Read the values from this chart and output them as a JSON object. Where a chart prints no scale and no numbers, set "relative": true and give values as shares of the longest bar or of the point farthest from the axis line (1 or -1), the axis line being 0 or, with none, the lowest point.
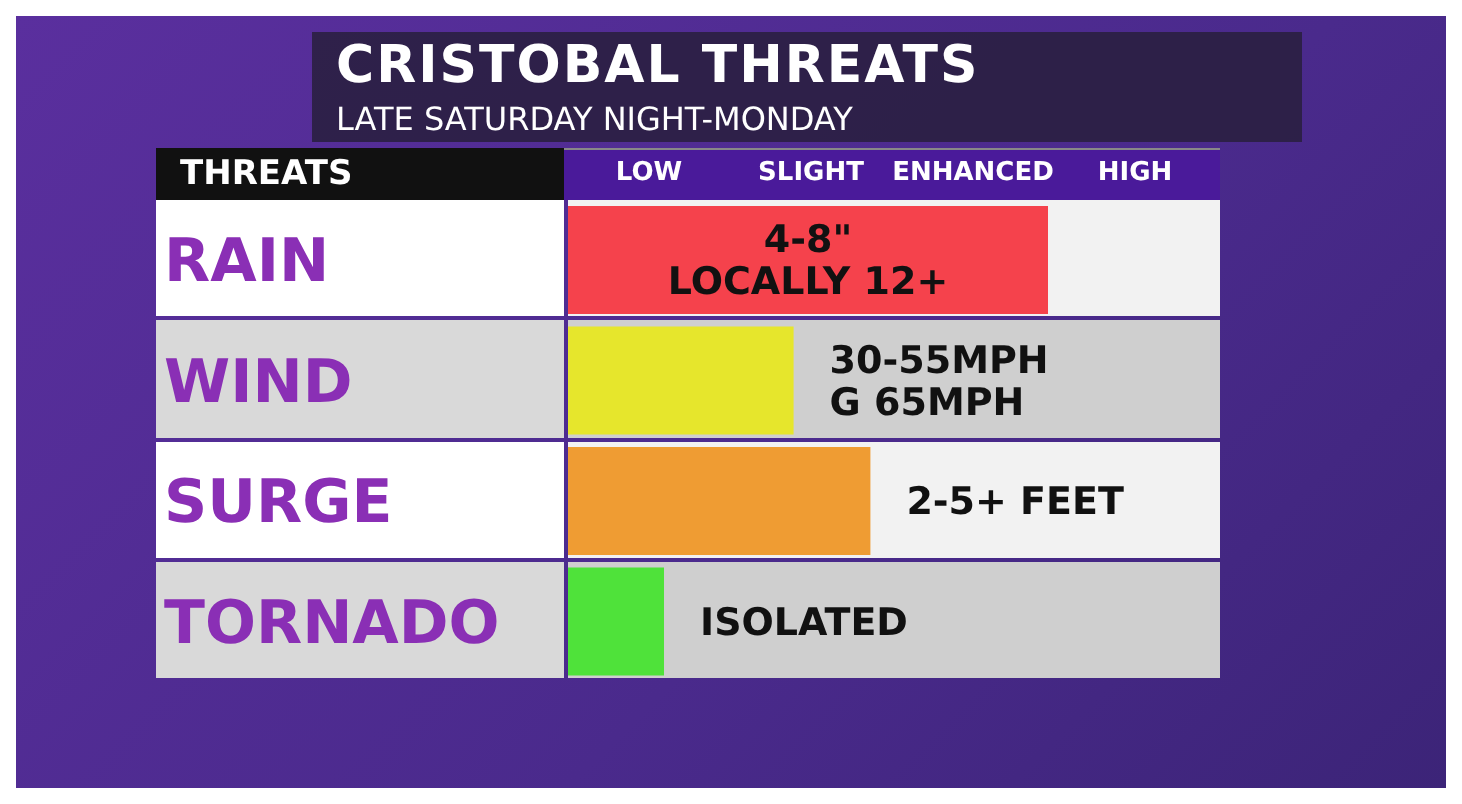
{
  "chart_data": {
    "type": "bar",
    "orientation": "horizontal",
    "relative": true,
    "title": "CRISTOBAL THREATS",
    "subtitle": "LATE SATURDAY NIGHT-MONDAY",
    "ylabel": "THREATS",
    "categories": [
      "RAIN",
      "WIND",
      "SURGE",
      "TORNADO"
    ],
    "values": [
      1,
      0.47,
      0.63,
      0.2
    ],
    "colors": [
      "#f5424c",
      "#e6e62c",
      "#ef9c33",
      "#4fe23a"
    ],
    "annotations": [
      "LOW",
      "SLIGHT",
      "ENHANCED",
      "HIGH",
      "4-8\"\nLOCALLY 12+",
      "30-55MPH\nG 65MPH",
      "2-5+ FEET",
      "ISOLATED"
    ]
  }
}
